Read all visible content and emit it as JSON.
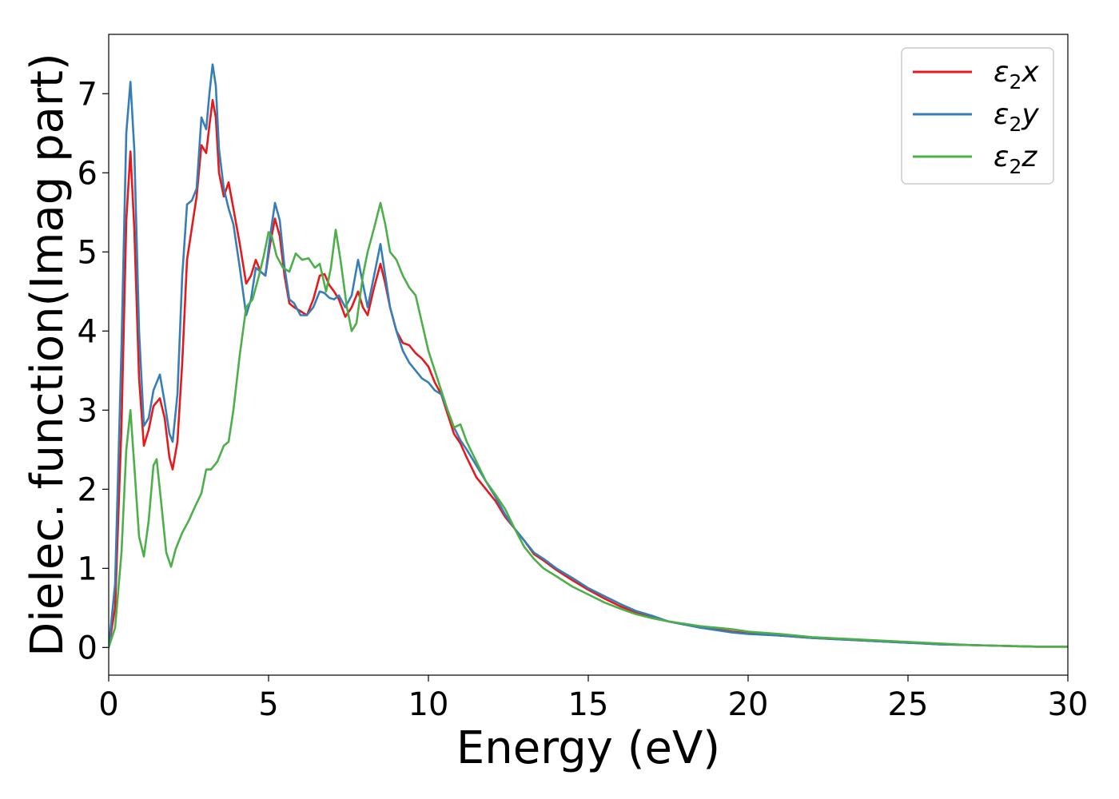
{
  "chart_data": {
    "type": "line",
    "xlabel": "Energy (eV)",
    "ylabel": "Dielec. function(Imag part)",
    "xlim": [
      0,
      30
    ],
    "ylim": [
      -0.35,
      7.75
    ],
    "xticks": [
      0,
      5,
      10,
      15,
      20,
      25,
      30
    ],
    "yticks": [
      0,
      1,
      2,
      3,
      4,
      5,
      6,
      7
    ],
    "grid": false,
    "legend_position": "top-right",
    "series": [
      {
        "name": "ε₂x",
        "legend_base": "ε",
        "legend_sub": "2",
        "legend_suffix": "x",
        "color": "#e41a1c",
        "x": [
          0,
          0.2,
          0.4,
          0.55,
          0.68,
          0.8,
          0.95,
          1.1,
          1.25,
          1.4,
          1.6,
          1.75,
          1.9,
          2.0,
          2.15,
          2.3,
          2.45,
          2.6,
          2.75,
          2.9,
          3.05,
          3.15,
          3.25,
          3.35,
          3.45,
          3.6,
          3.75,
          3.9,
          4.1,
          4.3,
          4.45,
          4.6,
          4.75,
          4.9,
          5.05,
          5.2,
          5.35,
          5.5,
          5.65,
          5.8,
          6.0,
          6.2,
          6.4,
          6.6,
          6.75,
          6.9,
          7.05,
          7.2,
          7.4,
          7.6,
          7.8,
          7.95,
          8.1,
          8.3,
          8.5,
          8.65,
          8.8,
          9.0,
          9.2,
          9.4,
          9.6,
          9.8,
          10.0,
          10.2,
          10.4,
          10.6,
          10.8,
          11.0,
          11.2,
          11.5,
          11.8,
          12.1,
          12.4,
          12.7,
          13.0,
          13.3,
          13.6,
          14.0,
          14.5,
          15.0,
          15.5,
          16.0,
          16.5,
          17.0,
          17.5,
          18.0,
          18.5,
          19.0,
          19.5,
          20.0,
          21.0,
          22.0,
          23.0,
          24.0,
          25.0,
          26.0,
          27.0,
          28.0,
          29.0,
          30.0
        ],
        "y": [
          0,
          0.5,
          2.8,
          5.4,
          6.27,
          5.3,
          3.4,
          2.55,
          2.75,
          3.05,
          3.15,
          2.9,
          2.4,
          2.25,
          2.6,
          3.6,
          4.9,
          5.3,
          5.7,
          6.35,
          6.25,
          6.6,
          6.92,
          6.7,
          6.0,
          5.7,
          5.88,
          5.55,
          5.1,
          4.6,
          4.7,
          4.9,
          4.75,
          4.7,
          5.1,
          5.42,
          5.2,
          4.7,
          4.35,
          4.3,
          4.25,
          4.2,
          4.4,
          4.7,
          4.72,
          4.58,
          4.5,
          4.4,
          4.18,
          4.3,
          4.5,
          4.3,
          4.2,
          4.55,
          4.85,
          4.6,
          4.3,
          4.0,
          3.85,
          3.82,
          3.72,
          3.65,
          3.55,
          3.35,
          3.2,
          2.95,
          2.7,
          2.58,
          2.4,
          2.15,
          2.0,
          1.85,
          1.65,
          1.5,
          1.35,
          1.18,
          1.1,
          0.98,
          0.85,
          0.73,
          0.62,
          0.52,
          0.44,
          0.38,
          0.33,
          0.29,
          0.26,
          0.23,
          0.2,
          0.18,
          0.15,
          0.12,
          0.1,
          0.08,
          0.06,
          0.04,
          0.03,
          0.02,
          0.01,
          0.01
        ]
      },
      {
        "name": "ε₂y",
        "legend_base": "ε",
        "legend_sub": "2",
        "legend_suffix": "y",
        "color": "#377eb8",
        "x": [
          0,
          0.2,
          0.4,
          0.55,
          0.68,
          0.8,
          0.95,
          1.1,
          1.25,
          1.4,
          1.6,
          1.75,
          1.9,
          2.0,
          2.15,
          2.3,
          2.45,
          2.6,
          2.75,
          2.9,
          3.05,
          3.15,
          3.25,
          3.35,
          3.45,
          3.6,
          3.75,
          3.9,
          4.1,
          4.3,
          4.45,
          4.6,
          4.75,
          4.9,
          5.05,
          5.2,
          5.35,
          5.5,
          5.65,
          5.8,
          6.0,
          6.2,
          6.4,
          6.6,
          6.75,
          6.9,
          7.05,
          7.2,
          7.4,
          7.6,
          7.8,
          7.95,
          8.1,
          8.3,
          8.5,
          8.65,
          8.8,
          9.0,
          9.2,
          9.4,
          9.6,
          9.8,
          10.0,
          10.2,
          10.4,
          10.6,
          10.8,
          11.0,
          11.2,
          11.5,
          11.8,
          12.1,
          12.4,
          12.7,
          13.0,
          13.3,
          13.6,
          14.0,
          14.5,
          15.0,
          15.5,
          16.0,
          16.5,
          17.0,
          17.5,
          18.0,
          18.5,
          19.0,
          19.5,
          20.0,
          21.0,
          22.0,
          23.0,
          24.0,
          25.0,
          26.0,
          27.0,
          28.0,
          29.0,
          30.0
        ],
        "y": [
          0,
          0.8,
          3.8,
          6.5,
          7.15,
          6.3,
          4.0,
          2.8,
          2.9,
          3.25,
          3.45,
          3.1,
          2.7,
          2.6,
          3.2,
          4.7,
          5.6,
          5.65,
          5.8,
          6.7,
          6.55,
          7.0,
          7.37,
          7.1,
          6.3,
          5.8,
          5.55,
          5.35,
          4.8,
          4.2,
          4.4,
          4.8,
          4.75,
          4.7,
          5.2,
          5.62,
          5.4,
          4.8,
          4.4,
          4.35,
          4.2,
          4.2,
          4.3,
          4.5,
          4.48,
          4.42,
          4.4,
          4.45,
          4.3,
          4.45,
          4.9,
          4.6,
          4.3,
          4.7,
          5.1,
          4.7,
          4.3,
          4.0,
          3.75,
          3.6,
          3.5,
          3.4,
          3.35,
          3.25,
          3.2,
          3.0,
          2.78,
          2.62,
          2.5,
          2.3,
          2.1,
          1.9,
          1.68,
          1.5,
          1.35,
          1.2,
          1.12,
          1.0,
          0.88,
          0.75,
          0.65,
          0.55,
          0.46,
          0.4,
          0.33,
          0.29,
          0.25,
          0.22,
          0.19,
          0.17,
          0.15,
          0.12,
          0.1,
          0.08,
          0.06,
          0.04,
          0.03,
          0.02,
          0.01,
          0.01
        ]
      },
      {
        "name": "ε₂z",
        "legend_base": "ε",
        "legend_sub": "2",
        "legend_suffix": "z",
        "color": "#4daf4a",
        "x": [
          0,
          0.2,
          0.4,
          0.55,
          0.68,
          0.8,
          0.95,
          1.1,
          1.25,
          1.4,
          1.5,
          1.65,
          1.8,
          1.95,
          2.1,
          2.3,
          2.5,
          2.7,
          2.9,
          3.05,
          3.2,
          3.4,
          3.6,
          3.75,
          3.9,
          4.1,
          4.3,
          4.5,
          4.7,
          4.85,
          5.0,
          5.1,
          5.25,
          5.45,
          5.65,
          5.85,
          6.05,
          6.25,
          6.45,
          6.6,
          6.8,
          6.95,
          7.1,
          7.25,
          7.45,
          7.6,
          7.75,
          7.95,
          8.1,
          8.3,
          8.5,
          8.65,
          8.8,
          9.0,
          9.2,
          9.4,
          9.6,
          9.8,
          10.0,
          10.2,
          10.4,
          10.6,
          10.8,
          11.0,
          11.2,
          11.5,
          11.8,
          12.1,
          12.4,
          12.7,
          13.0,
          13.3,
          13.6,
          14.0,
          14.5,
          15.0,
          15.5,
          16.0,
          16.5,
          17.0,
          17.5,
          18.0,
          18.5,
          19.0,
          19.5,
          20.0,
          21.0,
          22.0,
          23.0,
          24.0,
          25.0,
          26.0,
          27.0,
          28.0,
          29.0,
          30.0
        ],
        "y": [
          0,
          0.25,
          1.2,
          2.5,
          3.0,
          2.3,
          1.4,
          1.15,
          1.6,
          2.3,
          2.38,
          1.8,
          1.2,
          1.02,
          1.25,
          1.45,
          1.6,
          1.78,
          1.95,
          2.25,
          2.25,
          2.35,
          2.55,
          2.6,
          3.0,
          3.7,
          4.3,
          4.4,
          4.7,
          4.95,
          5.25,
          5.2,
          4.95,
          4.8,
          4.75,
          4.98,
          4.9,
          4.92,
          4.8,
          4.85,
          4.5,
          4.8,
          5.28,
          4.9,
          4.3,
          4.0,
          4.1,
          4.7,
          5.0,
          5.3,
          5.62,
          5.35,
          5.0,
          4.9,
          4.7,
          4.55,
          4.45,
          4.1,
          3.75,
          3.5,
          3.25,
          3.0,
          2.78,
          2.82,
          2.6,
          2.35,
          2.1,
          1.93,
          1.75,
          1.5,
          1.27,
          1.12,
          1.0,
          0.9,
          0.77,
          0.67,
          0.57,
          0.49,
          0.42,
          0.37,
          0.33,
          0.3,
          0.27,
          0.25,
          0.23,
          0.2,
          0.17,
          0.13,
          0.11,
          0.09,
          0.07,
          0.05,
          0.03,
          0.02,
          0.01,
          0.01
        ]
      }
    ]
  }
}
